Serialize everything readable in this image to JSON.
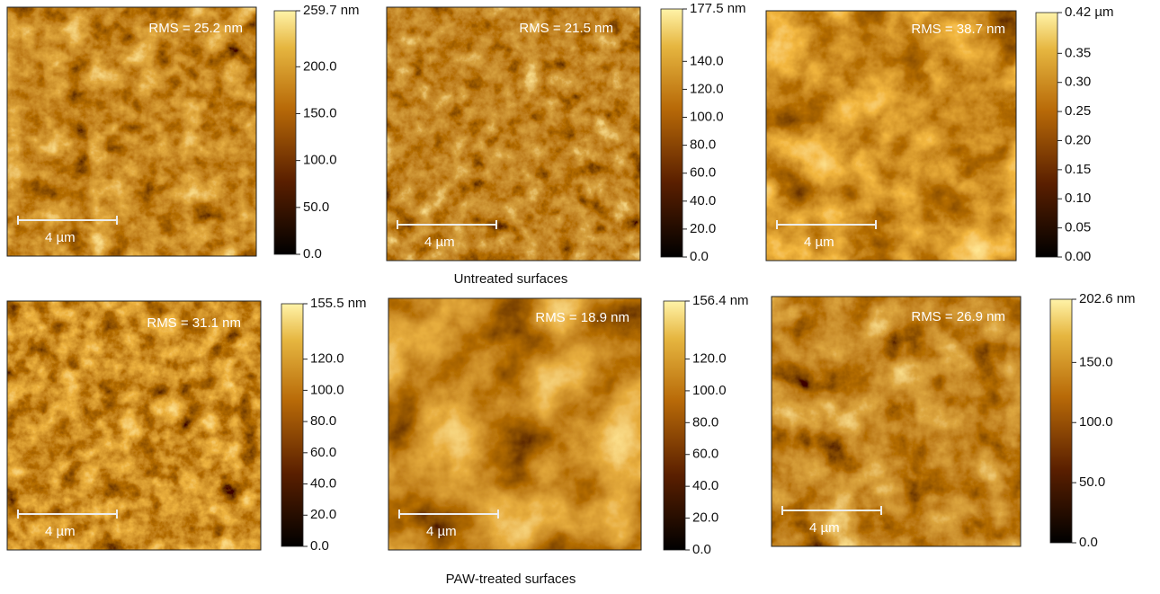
{
  "panels": [
    {
      "rms": "RMS = 25.2 nm",
      "scale_bar": "4 µm",
      "colorbar": {
        "ticks": [
          {
            "value": 259.7,
            "label": "259.7 nm"
          },
          {
            "value": 200,
            "label": "200.0"
          },
          {
            "value": 150,
            "label": "150.0"
          },
          {
            "value": 100,
            "label": "100.0"
          },
          {
            "value": 50,
            "label": "50.0"
          },
          {
            "value": 0,
            "label": "0.0"
          }
        ]
      }
    },
    {
      "rms": "RMS = 21.5 nm",
      "scale_bar": "4 µm",
      "colorbar": {
        "ticks": [
          {
            "value": 177.5,
            "label": "177.5 nm"
          },
          {
            "value": 140,
            "label": "140.0"
          },
          {
            "value": 120,
            "label": "120.0"
          },
          {
            "value": 100,
            "label": "100.0"
          },
          {
            "value": 80,
            "label": "80.0"
          },
          {
            "value": 60,
            "label": "60.0"
          },
          {
            "value": 40,
            "label": "40.0"
          },
          {
            "value": 20,
            "label": "20.0"
          },
          {
            "value": 0,
            "label": "0.0"
          }
        ]
      }
    },
    {
      "rms": "RMS = 38.7 nm",
      "scale_bar": "4 µm",
      "colorbar": {
        "ticks": [
          {
            "value": 0.42,
            "label": "0.42 µm"
          },
          {
            "value": 0.35,
            "label": "0.35"
          },
          {
            "value": 0.3,
            "label": "0.30"
          },
          {
            "value": 0.25,
            "label": "0.25"
          },
          {
            "value": 0.2,
            "label": "0.20"
          },
          {
            "value": 0.15,
            "label": "0.15"
          },
          {
            "value": 0.1,
            "label": "0.10"
          },
          {
            "value": 0.05,
            "label": "0.05"
          },
          {
            "value": 0,
            "label": "0.00"
          }
        ]
      }
    },
    {
      "rms": "RMS = 31.1 nm",
      "scale_bar": "4 µm",
      "colorbar": {
        "ticks": [
          {
            "value": 155.5,
            "label": "155.5 nm"
          },
          {
            "value": 120,
            "label": "120.0"
          },
          {
            "value": 100,
            "label": "100.0"
          },
          {
            "value": 80,
            "label": "80.0"
          },
          {
            "value": 60,
            "label": "60.0"
          },
          {
            "value": 40,
            "label": "40.0"
          },
          {
            "value": 20,
            "label": "20.0"
          },
          {
            "value": 0,
            "label": "0.0"
          }
        ]
      }
    },
    {
      "rms": "RMS = 18.9 nm",
      "scale_bar": "4 µm",
      "colorbar": {
        "ticks": [
          {
            "value": 156.4,
            "label": "156.4 nm"
          },
          {
            "value": 120,
            "label": "120.0"
          },
          {
            "value": 100,
            "label": "100.0"
          },
          {
            "value": 80,
            "label": "80.0"
          },
          {
            "value": 60,
            "label": "60.0"
          },
          {
            "value": 40,
            "label": "40.0"
          },
          {
            "value": 20,
            "label": "20.0"
          },
          {
            "value": 0,
            "label": "0.0"
          }
        ]
      }
    },
    {
      "rms": "RMS = 26.9 nm",
      "scale_bar": "4 µm",
      "colorbar": {
        "ticks": [
          {
            "value": 202.6,
            "label": "202.6 nm"
          },
          {
            "value": 150,
            "label": "150.0"
          },
          {
            "value": 100,
            "label": "100.0"
          },
          {
            "value": 50,
            "label": "50.0"
          },
          {
            "value": 0,
            "label": "0.0"
          }
        ]
      }
    }
  ],
  "captions": [
    "Untreated surfaces",
    "PAW-treated surfaces"
  ]
}
